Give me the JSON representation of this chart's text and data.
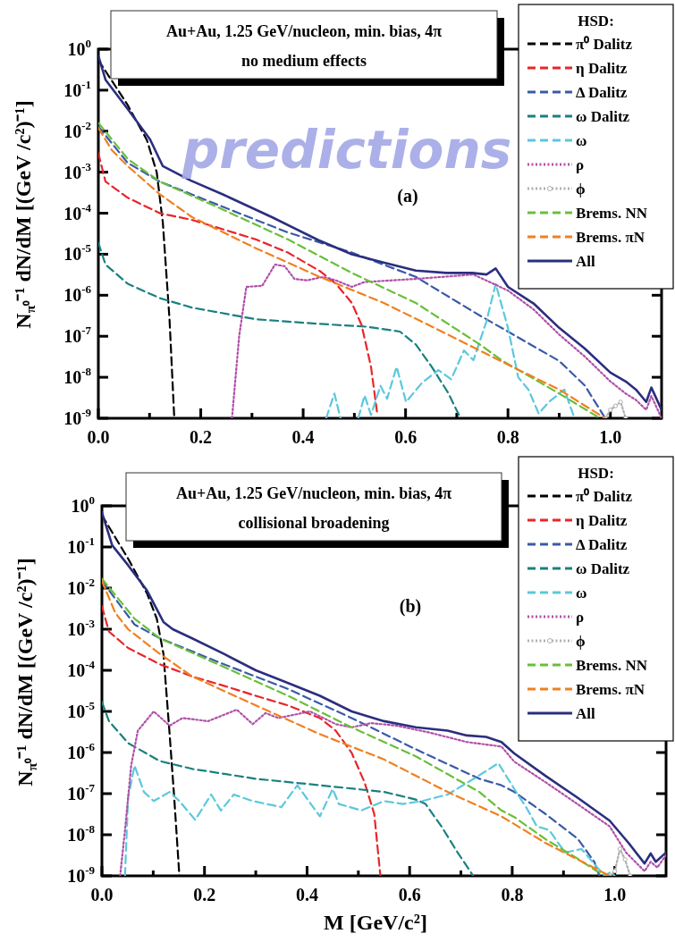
{
  "chart_data": [
    {
      "type": "line",
      "title": "Au+Au,  1.25 GeV/nucleon, min. bias, 4π",
      "subtitle": "no medium effects",
      "ylabel": "N$_{π⁰}$⁻¹ dN/dM  [(GeV /c²)⁻¹]",
      "legend_title": "HSD:",
      "legend": "top right",
      "log": true,
      "annotations": [
        "(a)",
        "predictions"
      ],
      "xlim": [
        0,
        1.1
      ],
      "ylim": [
        1e-09,
        1
      ],
      "xticks": [
        {
          "value": 0,
          "label": "0.0"
        },
        {
          "value": 0.1,
          "label": null
        },
        {
          "value": 0.2,
          "label": "0.2"
        },
        {
          "value": 0.3,
          "label": null
        },
        {
          "value": 0.4,
          "label": "0.4"
        },
        {
          "value": 0.5,
          "label": null
        },
        {
          "value": 0.6,
          "label": "0.6"
        },
        {
          "value": 0.7,
          "label": null
        },
        {
          "value": 0.8,
          "label": "0.8"
        },
        {
          "value": 0.9,
          "label": null
        },
        {
          "value": 1,
          "label": "1.0"
        }
      ],
      "yticks": [
        {
          "value": 1e-09,
          "label": "10$^{-9}$"
        },
        {
          "value": 1e-08,
          "label": "10$^{-8}$"
        },
        {
          "value": 1e-07,
          "label": "10$^{-7}$"
        },
        {
          "value": 1e-06,
          "label": "10$^{-6}$"
        },
        {
          "value": 1e-05,
          "label": "10$^{-5}$"
        },
        {
          "value": 0.0001,
          "label": "10$^{-4}$"
        },
        {
          "value": 0.001,
          "label": "10$^{-3}$"
        },
        {
          "value": 0.01,
          "label": "10$^{-2}$"
        },
        {
          "value": 0.1,
          "label": "10$^{-1}$"
        },
        {
          "value": 1,
          "label": "10$^{0}$"
        }
      ],
      "series": [
        {
          "name": "π⁰ Dalitz",
          "color": "#000000",
          "line_style": "dashed",
          "x": [
            0,
            0.057,
            0.095,
            0.114,
            0.126,
            0.139,
            0.148,
            0.15
          ],
          "values": [
            0.54,
            0.044,
            0.006,
            0.001,
            5.8e-05,
            2.6e-07,
            1.2e-09,
            1e-09
          ]
        },
        {
          "name": "η Dalitz",
          "color": "#e8262a",
          "line_style": "dashed",
          "x": [
            0,
            0.014,
            0.057,
            0.12,
            0.1825,
            0.245,
            0.3075,
            0.37,
            0.4325,
            0.464,
            0.495,
            0.514,
            0.5325,
            0.545
          ],
          "values": [
            0.0029,
            0.00059,
            0.00024,
            0.0001,
            6.9e-05,
            4e-05,
            2.3e-05,
            1.1e-05,
            3.9e-06,
            1.9e-06,
            6.5e-07,
            1.9e-07,
            1.8e-08,
            1.2e-09
          ]
        },
        {
          "name": "Δ Dalitz",
          "color": "#3a5aa8",
          "line_style": "dashed",
          "x": [
            0,
            0.057,
            0.12,
            0.245,
            0.37,
            0.495,
            0.62,
            0.745,
            0.8,
            0.9,
            0.95,
            0.99
          ],
          "values": [
            0.013,
            0.0017,
            0.00059,
            0.00014,
            3.4e-05,
            1.1e-05,
            2.8e-06,
            3.2e-07,
            1.3e-07,
            2.5e-08,
            6.3e-09,
            1e-09
          ]
        },
        {
          "name": "ω Dalitz",
          "color": "#1a8080",
          "line_style": "dashed",
          "x": [
            0,
            0.014,
            0.0575,
            0.12,
            0.1825,
            0.3075,
            0.4325,
            0.526,
            0.589,
            0.62,
            0.651,
            0.6825,
            0.7075
          ],
          "values": [
            1.9e-05,
            5.6e-06,
            1.9e-06,
            8.5e-07,
            5e-07,
            2.6e-07,
            2e-07,
            1.7e-07,
            1.3e-07,
            6.3e-08,
            1.8e-08,
            4.3e-09,
            1e-09
          ]
        },
        {
          "name": "ω",
          "color": "#5bc8dc",
          "line_style": "dashed",
          "x": [
            0.445,
            0.461,
            0.473,
            0.49,
            0.5075,
            0.52,
            0.5325,
            0.551,
            0.564,
            0.5825,
            0.601,
            0.6325,
            0.664,
            0.689,
            0.714,
            0.7325,
            0.7575,
            0.776,
            0.8,
            0.82,
            0.84,
            0.86,
            0.88,
            0.91,
            0.93
          ],
          "values": [
            1e-09,
            4e-09,
            1e-09,
            null,
            1e-09,
            3.6e-09,
            1.2e-09,
            6.2e-09,
            3e-09,
            1.8e-08,
            2.5e-09,
            7.4e-09,
            1.5e-08,
            8.9e-09,
            4.5e-08,
            2.6e-08,
            2.2e-07,
            1.9e-06,
            1.6e-07,
            1e-08,
            5e-09,
            1.3e-09,
            2.5e-09,
            5e-09,
            1e-09
          ]
        },
        {
          "name": "ρ",
          "color": "#b050a8",
          "line_style": "dotted",
          "x": [
            0.261,
            0.275,
            0.289,
            0.32,
            0.345,
            0.364,
            0.383,
            0.4075,
            0.439,
            0.464,
            0.495,
            0.52,
            0.62,
            0.7325,
            0.8,
            0.85,
            0.9,
            0.95,
            1.0,
            1.03,
            1.05,
            1.07,
            1.08,
            1.1
          ],
          "values": [
            1e-09,
            1e-07,
            1.6e-06,
            1.7e-06,
            5.6e-06,
            5.1e-06,
            2.5e-06,
            2.3e-06,
            2.8e-06,
            2.3e-06,
            1.6e-06,
            2.1e-06,
            2.5e-06,
            3.2e-06,
            1.3e-06,
            4.5e-07,
            1.1e-07,
            3.2e-08,
            7.9e-09,
            4e-09,
            2.8e-09,
            1.6e-09,
            3.5e-09,
            1e-09
          ]
        },
        {
          "name": "ϕ",
          "color": "#b0b0b0",
          "line_style": "dotted",
          "marker": "circle",
          "x": [
            0.99,
            1.0,
            1.01,
            1.02,
            1.03
          ],
          "values": [
            1e-09,
            1.6e-09,
            2e-09,
            2.5e-09,
            1e-09
          ]
        },
        {
          "name": "Brems. NN",
          "color": "#6abf3a",
          "line_style": "dashed",
          "x": [
            0,
            0.0575,
            0.12,
            0.245,
            0.37,
            0.495,
            0.62,
            0.745,
            0.7875,
            0.9,
            0.98
          ],
          "values": [
            0.016,
            0.0021,
            0.00059,
            0.00012,
            2.3e-05,
            3.5e-06,
            6.5e-07,
            6.3e-08,
            2.6e-08,
            4e-09,
            1e-09
          ]
        },
        {
          "name": "Brems. πN",
          "color": "#f08020",
          "line_style": "dashed",
          "x": [
            0,
            0.026,
            0.0575,
            0.12,
            0.1825,
            0.3075,
            0.4325,
            0.5575,
            0.6825,
            0.7825,
            0.9,
            0.99
          ],
          "values": [
            0.012,
            0.0035,
            0.0014,
            0.00029,
            8.1e-05,
            1.4e-05,
            2.8e-06,
            6.5e-07,
            1.1e-07,
            2.6e-08,
            5e-09,
            1e-09
          ]
        },
        {
          "name": "All",
          "color": "#2b2e7e",
          "line_style": "solid",
          "x": [
            0,
            0.014,
            0.057,
            0.101,
            0.126,
            0.18,
            0.245,
            0.34,
            0.43,
            0.495,
            0.557,
            0.62,
            0.68,
            0.73,
            0.758,
            0.776,
            0.8,
            0.85,
            0.9,
            0.95,
            1.0,
            1.03,
            1.05,
            1.07,
            1.08,
            1.1
          ],
          "values": [
            0.69,
            0.18,
            0.035,
            0.0063,
            0.0014,
            0.00063,
            0.00028,
            7.9e-05,
            2.2e-05,
            1e-05,
            6.3e-06,
            4e-06,
            3.5e-06,
            3.5e-06,
            3.2e-06,
            4.5e-06,
            1.6e-06,
            6.3e-07,
            1.6e-07,
            5e-08,
            1.3e-08,
            7.9e-09,
            5e-09,
            2.5e-09,
            5.6e-09,
            1.6e-09
          ]
        }
      ]
    },
    {
      "type": "line",
      "title": "Au+Au,  1.25 GeV/nucleon, min. bias, 4π",
      "subtitle": "collisional broadening",
      "xlabel": "M [GeV/c²]",
      "ylabel": "N$_{π⁰}$⁻¹ dN/dM  [(GeV /c²)⁻¹]",
      "legend_title": "HSD:",
      "legend": "top right",
      "log": true,
      "annotations": [
        "(b)"
      ],
      "xlim": [
        0,
        1.1
      ],
      "ylim": [
        1e-09,
        1
      ],
      "xticks": [
        {
          "value": 0,
          "label": "0.0"
        },
        {
          "value": 0.1,
          "label": null
        },
        {
          "value": 0.2,
          "label": "0.2"
        },
        {
          "value": 0.3,
          "label": null
        },
        {
          "value": 0.4,
          "label": "0.4"
        },
        {
          "value": 0.5,
          "label": null
        },
        {
          "value": 0.6,
          "label": "0.6"
        },
        {
          "value": 0.7,
          "label": null
        },
        {
          "value": 0.8,
          "label": "0.8"
        },
        {
          "value": 0.9,
          "label": null
        },
        {
          "value": 1,
          "label": "1.0"
        }
      ],
      "yticks": [
        {
          "value": 1e-09,
          "label": "10$^{-9}$"
        },
        {
          "value": 1e-08,
          "label": "10$^{-8}$"
        },
        {
          "value": 1e-07,
          "label": "10$^{-7}$"
        },
        {
          "value": 1e-06,
          "label": "10$^{-6}$"
        },
        {
          "value": 1e-05,
          "label": "10$^{-5}$"
        },
        {
          "value": 0.0001,
          "label": "10$^{-4}$"
        },
        {
          "value": 0.001,
          "label": "10$^{-3}$"
        },
        {
          "value": 0.01,
          "label": "10$^{-2}$"
        },
        {
          "value": 0.1,
          "label": "10$^{-1}$"
        },
        {
          "value": 1,
          "label": "10$^{0}$"
        }
      ],
      "series": [
        {
          "name": "π⁰ Dalitz",
          "color": "#000000",
          "line_style": "dashed",
          "x": [
            0,
            0.051,
            0.088,
            0.107,
            0.12,
            0.132,
            0.141,
            0.151
          ],
          "values": [
            0.59,
            0.052,
            0.0074,
            0.0018,
            0.00025,
            2.8e-06,
            7.9e-08,
            1e-09
          ]
        },
        {
          "name": "η Dalitz",
          "color": "#e8262a",
          "line_style": "dashed",
          "x": [
            0,
            0.0137,
            0.051,
            0.113,
            0.176,
            0.238,
            0.3,
            0.363,
            0.425,
            0.456,
            0.487,
            0.512,
            0.531,
            0.543
          ],
          "values": [
            0.0036,
            0.00087,
            0.00035,
            0.00014,
            7.1e-05,
            4.2e-05,
            2.4e-05,
            1.4e-05,
            6.9e-06,
            3.4e-06,
            9.8e-07,
            1.9e-07,
            3.2e-08,
            1e-09
          ]
        },
        {
          "name": "Δ Dalitz",
          "color": "#3a5aa8",
          "line_style": "dashed",
          "x": [
            0,
            0.0636,
            0.113,
            0.238,
            0.363,
            0.487,
            0.612,
            0.736,
            0.779,
            0.804,
            0.865,
            0.928,
            0.96,
            0.97
          ],
          "values": [
            0.015,
            0.0013,
            0.0006,
            0.00014,
            3.5e-05,
            6.9e-06,
            1.2e-06,
            2.3e-07,
            1.6e-07,
            1.1e-07,
            3.2e-08,
            7.9e-09,
            2.2e-09,
            1e-09
          ]
        },
        {
          "name": "ω Dalitz",
          "color": "#1a8080",
          "line_style": "dashed",
          "x": [
            0,
            0.0137,
            0.051,
            0.113,
            0.176,
            0.3,
            0.425,
            0.55,
            0.612,
            0.631,
            0.662,
            0.693,
            0.724
          ],
          "values": [
            1.7e-05,
            5.8e-06,
            1.7e-06,
            6.2e-07,
            4e-07,
            2.3e-07,
            1.6e-07,
            1.1e-07,
            7.2e-08,
            5.6e-08,
            1.6e-08,
            3.8e-09,
            1e-09
          ]
        },
        {
          "name": "ω",
          "color": "#5bc8dc",
          "line_style": "dashed",
          "x": [
            0.045,
            0.051,
            0.0636,
            0.082,
            0.101,
            0.132,
            0.151,
            0.182,
            0.213,
            0.232,
            0.257,
            0.294,
            0.35,
            0.381,
            0.425,
            0.45,
            0.462,
            0.506,
            0.55,
            0.587,
            0.624,
            0.674,
            0.736,
            0.773,
            0.804,
            0.828,
            0.848,
            0.872,
            0.903,
            0.935,
            0.966,
            0.98,
            0.99,
            1.0
          ],
          "values": [
            1e-09,
            7.9e-08,
            4.8e-07,
            1.1e-07,
            6.6e-08,
            1.1e-07,
            6.6e-08,
            2.3e-08,
            9.5e-08,
            3.9e-08,
            9.5e-08,
            6.6e-08,
            4.7e-08,
            1.6e-07,
            2.8e-08,
            1.3e-07,
            5.6e-08,
            3.9e-08,
            6.6e-08,
            5.6e-08,
            6.6e-08,
            9.5e-08,
            2.8e-07,
            5.5e-07,
            1.3e-07,
            4.5e-08,
            1.6e-08,
            1.3e-08,
            3.7e-09,
            4.5e-09,
            1.6e-09,
            1e-09,
            1.2e-09,
            1e-09
          ]
        },
        {
          "name": "ρ",
          "color": "#b050a8",
          "line_style": "dotted",
          "x": [
            0.0355,
            0.045,
            0.057,
            0.07,
            0.101,
            0.132,
            0.157,
            0.207,
            0.263,
            0.294,
            0.319,
            0.344,
            0.406,
            0.456,
            0.487,
            0.525,
            0.574,
            0.637,
            0.7115,
            0.779,
            0.804,
            0.865,
            0.928,
            0.99,
            1.022,
            1.058,
            1.07,
            1.083,
            1.1
          ],
          "values": [
            1e-09,
            1.3e-08,
            4.8e-07,
            3.4e-06,
            1e-05,
            4.5e-06,
            6.9e-06,
            5.8e-06,
            1.1e-05,
            4.9e-06,
            9.1e-06,
            6.9e-06,
            1e-05,
            4.9e-06,
            4.1e-06,
            5.2e-06,
            4.5e-06,
            3.1e-06,
            1.8e-06,
            1.4e-06,
            6e-07,
            1.9e-07,
            5.5e-08,
            1.6e-08,
            3.7e-09,
            1.3e-09,
            2.2e-09,
            1.6e-09,
            3.2e-09
          ]
        },
        {
          "name": "ϕ",
          "color": "#b0b0b0",
          "line_style": "dotted",
          "marker": "circle",
          "x": [
            0.99,
            1.0,
            1.01,
            1.02,
            1.03
          ],
          "values": [
            1e-09,
            1.3e-09,
            4.5e-09,
            2.5e-09,
            1e-09
          ]
        },
        {
          "name": "Brems. NN",
          "color": "#6abf3a",
          "line_style": "dashed",
          "x": [
            0,
            0.0636,
            0.113,
            0.238,
            0.363,
            0.487,
            0.612,
            0.736,
            0.779,
            0.804,
            0.865,
            0.928,
            0.965,
            0.99
          ],
          "values": [
            0.017,
            0.0018,
            0.0006,
            0.00012,
            2.4e-05,
            4.1e-06,
            8.1e-07,
            1.1e-07,
            3.9e-08,
            2.7e-08,
            7.8e-09,
            2.6e-09,
            1.3e-09,
            1e-09
          ]
        },
        {
          "name": "Brems. πN",
          "color": "#f08020",
          "line_style": "dashed",
          "x": [
            0,
            0.026,
            0.051,
            0.113,
            0.176,
            0.3,
            0.425,
            0.55,
            0.674,
            0.779,
            0.865,
            0.928,
            0.99
          ],
          "values": [
            0.015,
            0.0025,
            0.001,
            0.00025,
            7.1e-05,
            1.4e-05,
            2.8e-06,
            6.8e-07,
            1.1e-07,
            2.8e-08,
            6.3e-09,
            2.5e-09,
            1e-09
          ]
        },
        {
          "name": "All",
          "color": "#2b2e7e",
          "line_style": "solid",
          "x": [
            0,
            0.02,
            0.051,
            0.088,
            0.12,
            0.138,
            0.176,
            0.238,
            0.3,
            0.363,
            0.425,
            0.487,
            0.55,
            0.612,
            0.674,
            0.7115,
            0.749,
            0.779,
            0.804,
            0.865,
            0.928,
            0.99,
            1.027,
            1.058,
            1.07,
            1.08,
            1.1
          ],
          "values": [
            0.69,
            0.11,
            0.036,
            0.0087,
            0.0015,
            0.001,
            0.0006,
            0.00025,
            0.0001,
            4.9e-05,
            2.4e-05,
            1e-05,
            5.8e-06,
            4.1e-06,
            3.4e-06,
            2.6e-06,
            2.4e-06,
            1.8e-06,
            9.5e-07,
            2.7e-07,
            7.9e-08,
            2.2e-08,
            6.3e-09,
            2e-09,
            3.5e-09,
            2.2e-09,
            3.7e-09
          ]
        }
      ]
    }
  ]
}
